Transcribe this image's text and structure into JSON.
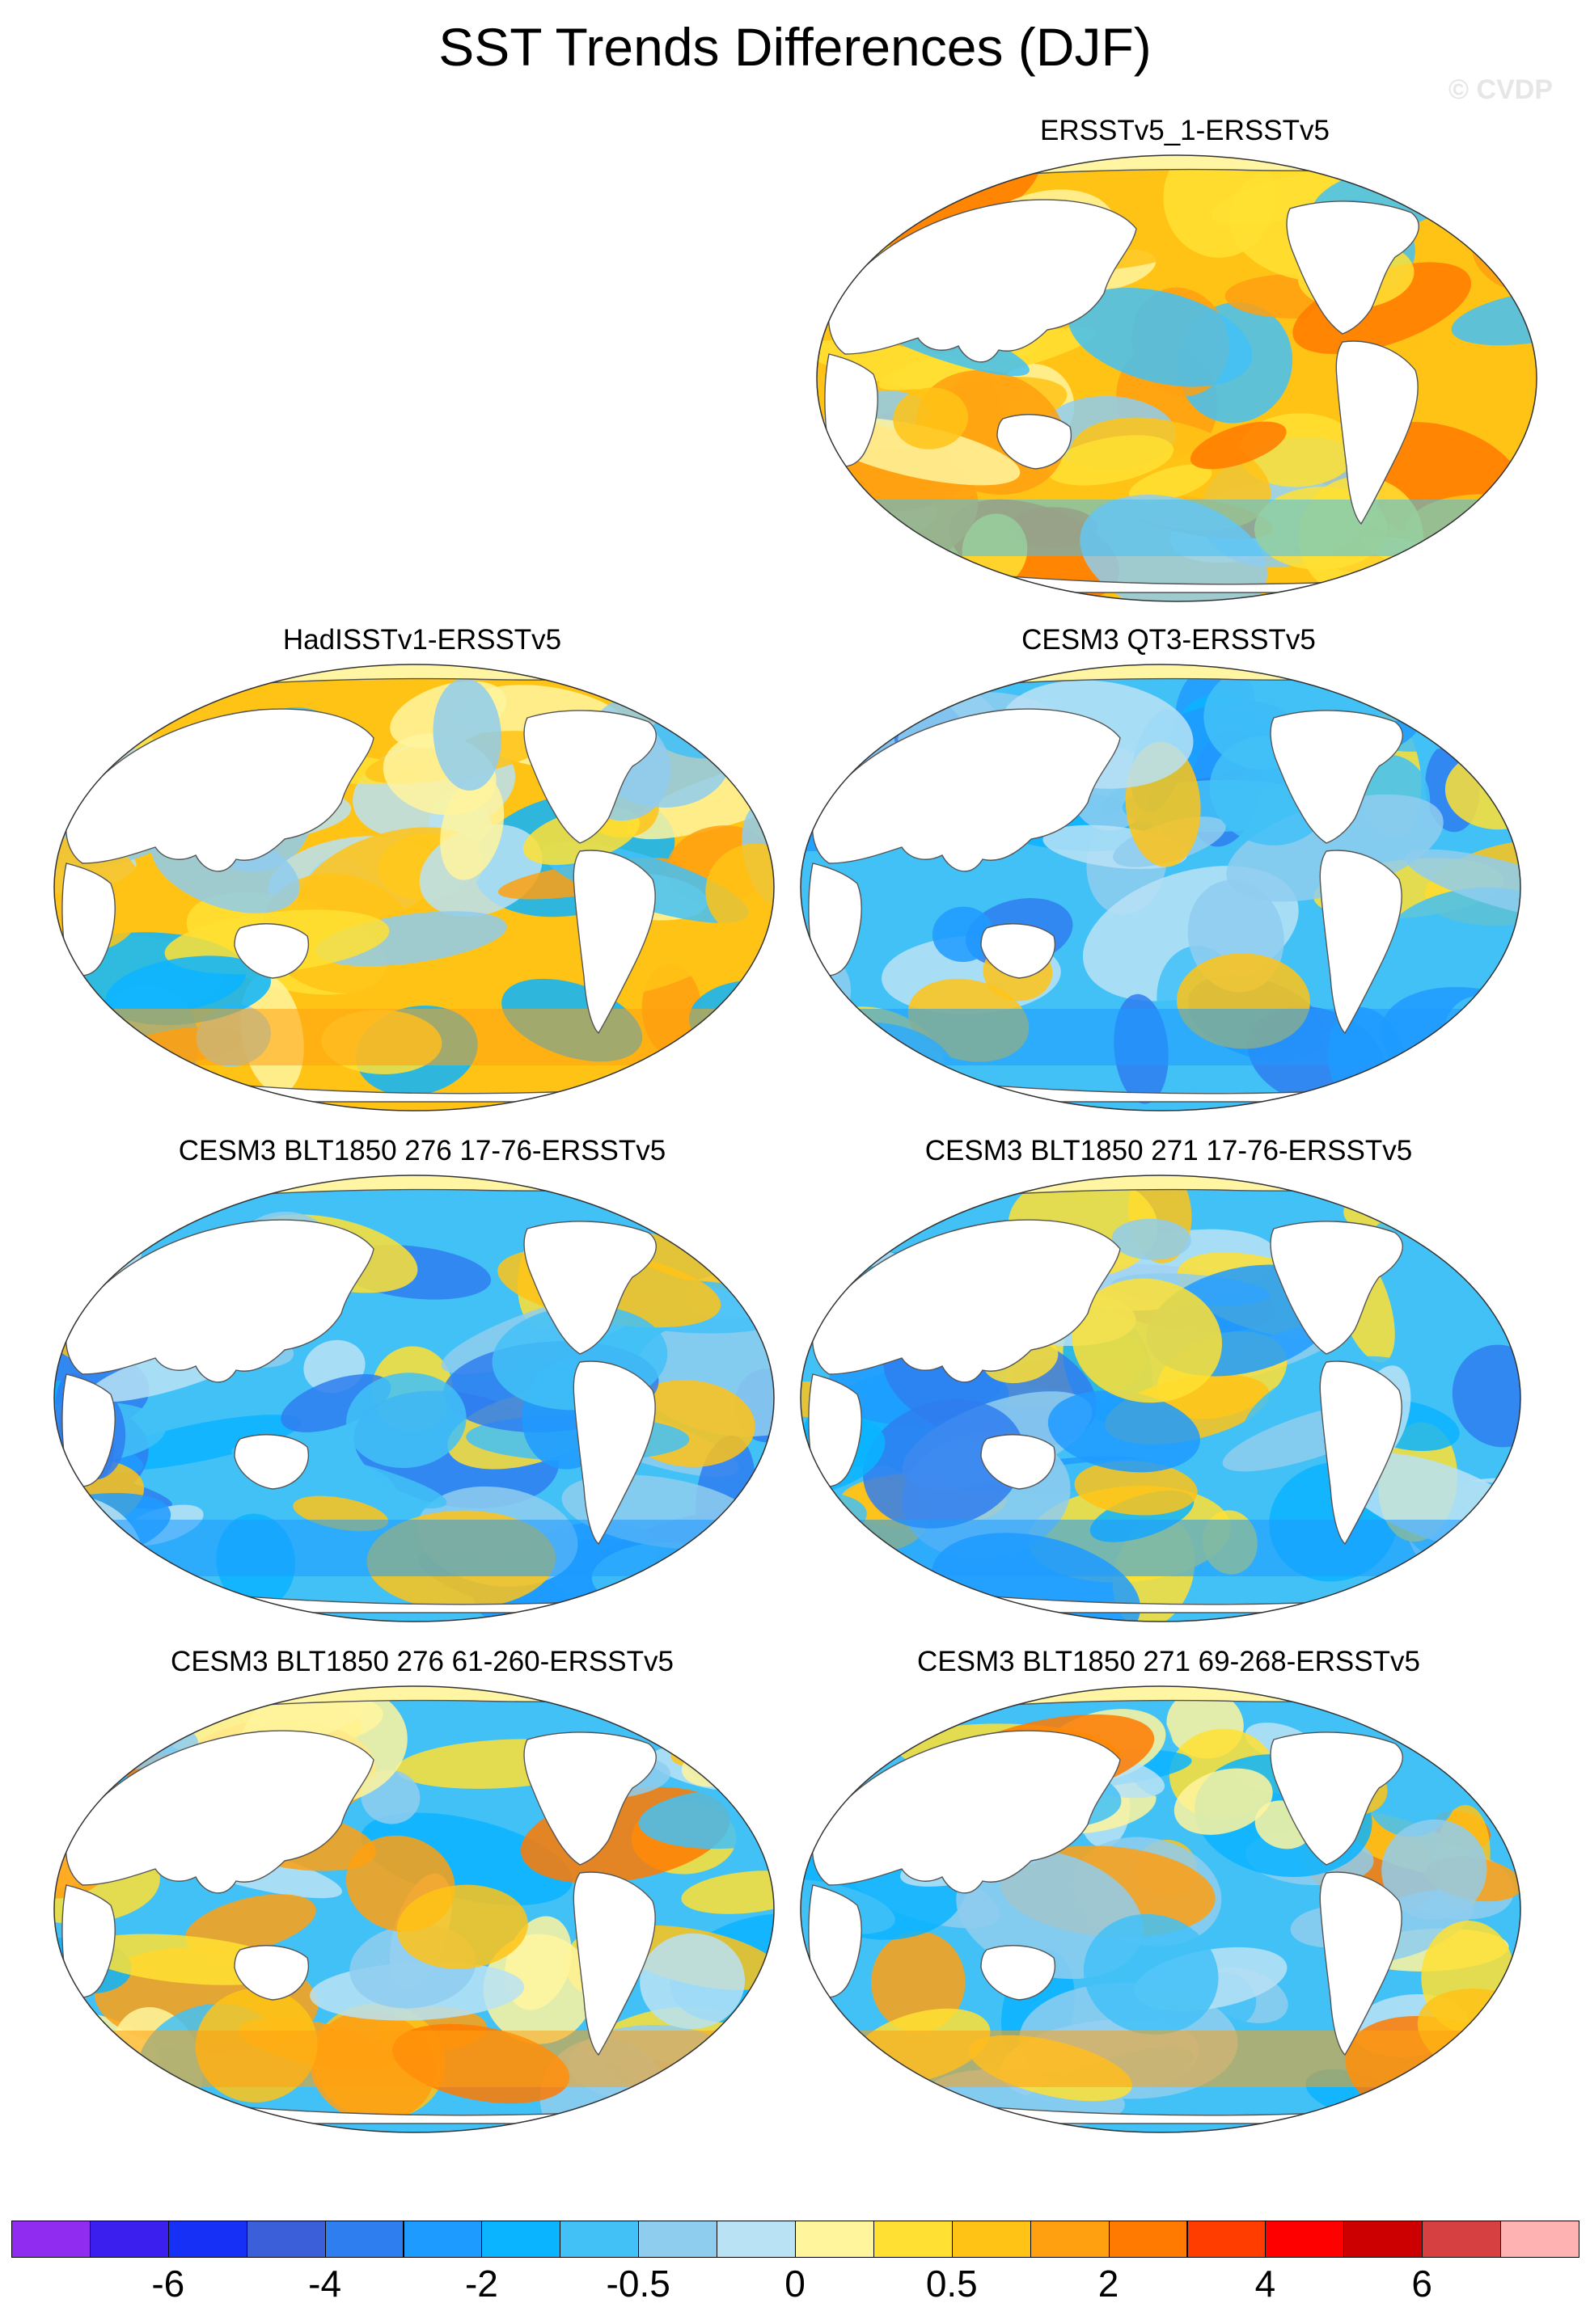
{
  "title": "SST Trends Differences (DJF)",
  "copyright": "© CVDP",
  "panels": [
    {
      "id": "p1",
      "title": "ERSSTv5_1-ERSSTv5",
      "pattern": "warm"
    },
    {
      "id": "p2",
      "title": "HadISSTv1-ERSSTv5",
      "pattern": "mixed-warm"
    },
    {
      "id": "p3",
      "title": "CESM3 QT3-ERSSTv5",
      "pattern": "cool"
    },
    {
      "id": "p4",
      "title": "CESM3 BLT1850 276 17-76-ERSSTv5",
      "pattern": "cool"
    },
    {
      "id": "p5",
      "title": "CESM3 BLT1850 271 17-76-ERSSTv5",
      "pattern": "cool"
    },
    {
      "id": "p6",
      "title": "CESM3 BLT1850 276 61-260-ERSSTv5",
      "pattern": "mixed"
    },
    {
      "id": "p7",
      "title": "CESM3 BLT1850 271 69-268-ERSSTv5",
      "pattern": "mixed"
    }
  ],
  "colorbar": {
    "colors": [
      "#8f2cf0",
      "#3b1fef",
      "#1630f5",
      "#3a5fd8",
      "#2f7ef0",
      "#1e9bff",
      "#0bb4ff",
      "#42c1f7",
      "#8fcdee",
      "#b9e2f4",
      "#fff59d",
      "#ffe033",
      "#ffc316",
      "#ffa010",
      "#ff7a00",
      "#ff3d00",
      "#ff0000",
      "#cc0000",
      "#d64040",
      "#ffb2b2"
    ],
    "labels": [
      "-6",
      "-4",
      "-2",
      "-0.5",
      "0",
      "0.5",
      "2",
      "4",
      "6"
    ]
  },
  "legend_palette": {
    "land": "#ffffff",
    "sea_ice": "#fff5a3",
    "coast": "#555555"
  }
}
